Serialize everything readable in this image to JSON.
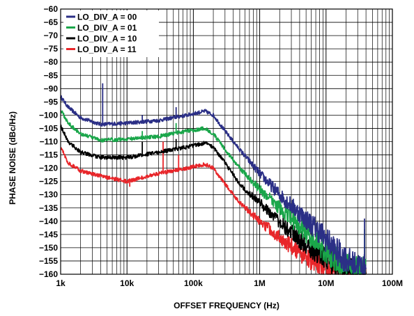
{
  "chart_data": {
    "type": "line",
    "xscale": "log",
    "xlabel": "OFFSET FREQUENCY (Hz)",
    "ylabel": "PHASE NOISE (dBc/Hz)",
    "xlim": [
      1000,
      100000000
    ],
    "ylim": [
      -160,
      -60
    ],
    "grid": true,
    "legend_position": "top-left",
    "x_ticks": [
      {
        "value": 1000,
        "label": "1k"
      },
      {
        "value": 10000,
        "label": "10k"
      },
      {
        "value": 100000,
        "label": "100k"
      },
      {
        "value": 1000000,
        "label": "1M"
      },
      {
        "value": 10000000,
        "label": "10M"
      },
      {
        "value": 100000000,
        "label": "100M"
      }
    ],
    "y_ticks": [
      -60,
      -65,
      -70,
      -75,
      -80,
      -85,
      -90,
      -95,
      -100,
      -105,
      -110,
      -115,
      -120,
      -125,
      -130,
      -135,
      -140,
      -145,
      -150,
      -155,
      -160
    ],
    "series": [
      {
        "name": "LO_DIV_A = 00",
        "color": "#2b2f86",
        "x": [
          1000,
          1300,
          2000,
          4000,
          10000,
          30000,
          80000,
          150000,
          200000,
          300000,
          500000,
          1000000,
          2000000,
          4000000,
          8000000,
          15000000,
          25000000,
          40000000
        ],
        "y": [
          -93,
          -97,
          -101,
          -103.5,
          -103,
          -102,
          -100,
          -98.5,
          -100,
          -106,
          -113,
          -122,
          -130,
          -137,
          -144,
          -152,
          -156,
          -157
        ],
        "spurs": [
          {
            "x": 4300,
            "y": -88
          },
          {
            "x": 17000,
            "y": -100
          },
          {
            "x": 55000,
            "y": -97
          },
          {
            "x": 20000000,
            "y": -152
          },
          {
            "x": 38000000,
            "y": -139
          }
        ]
      },
      {
        "name": "LO_DIV_A = 01",
        "color": "#1aa64a",
        "x": [
          1000,
          1300,
          2000,
          4000,
          10000,
          30000,
          80000,
          150000,
          200000,
          300000,
          500000,
          1000000,
          2000000,
          4000000,
          8000000,
          15000000,
          25000000,
          40000000
        ],
        "y": [
          -98,
          -103,
          -107,
          -109.5,
          -109,
          -108,
          -106,
          -105,
          -107,
          -113,
          -120,
          -128,
          -135,
          -142,
          -149,
          -155,
          -157.5,
          -158
        ],
        "spurs": [
          {
            "x": 55000,
            "y": -103
          },
          {
            "x": 17000,
            "y": -106
          },
          {
            "x": 38000000,
            "y": -143
          }
        ]
      },
      {
        "name": "LO_DIV_A = 10",
        "color": "#000000",
        "x": [
          1000,
          1300,
          2000,
          4000,
          10000,
          30000,
          80000,
          150000,
          200000,
          300000,
          500000,
          1000000,
          2000000,
          4000000,
          8000000,
          15000000,
          25000000,
          40000000
        ],
        "y": [
          -104,
          -110,
          -114,
          -116,
          -116,
          -114,
          -112,
          -110.5,
          -112,
          -118,
          -126,
          -133,
          -140,
          -147,
          -152,
          -156.5,
          -158.5,
          -159
        ],
        "spurs": [
          {
            "x": 17000,
            "y": -110
          },
          {
            "x": 55000,
            "y": -109
          }
        ]
      },
      {
        "name": "LO_DIV_A = 11",
        "color": "#e8262a",
        "x": [
          1000,
          1300,
          2000,
          4000,
          10000,
          30000,
          80000,
          150000,
          200000,
          300000,
          500000,
          1000000,
          2000000,
          4000000,
          8000000,
          15000000,
          25000000,
          40000000
        ],
        "y": [
          -112,
          -118,
          -121,
          -123,
          -125,
          -122,
          -120,
          -118.5,
          -120,
          -126,
          -133,
          -140,
          -146,
          -152,
          -156,
          -158.5,
          -159.5,
          -159.8
        ],
        "spurs": [
          {
            "x": 11000,
            "y": -127
          },
          {
            "x": 35000,
            "y": -110
          },
          {
            "x": 60000,
            "y": -115
          }
        ]
      }
    ]
  }
}
